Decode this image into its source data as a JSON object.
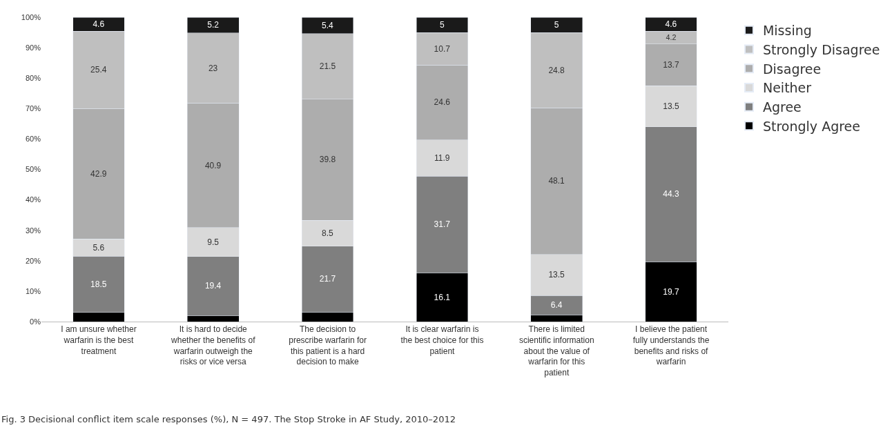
{
  "chart_data": {
    "type": "bar",
    "stacked": true,
    "legend": "right",
    "categories": [
      "I am unsure whether warfarin is the best treatment",
      "It is hard to decide whether the benefits of warfarin outweigh the risks or vice versa",
      "The decision to prescribe warfarin for this patient is a hard decision to make",
      "It is clear warfarin is the best choice for this patient",
      "There is limited scientific information about the value of warfarin for this patient",
      "I believe the patient fully understands the benefits and risks of warfarin"
    ],
    "ylim": [
      0,
      100
    ],
    "yticks": [
      {
        "value": 0,
        "label": "0%"
      },
      {
        "value": 10,
        "label": "10%"
      },
      {
        "value": 20,
        "label": "20%"
      },
      {
        "value": 30,
        "label": "30%"
      },
      {
        "value": 40,
        "label": "40%"
      },
      {
        "value": 50,
        "label": "50%"
      },
      {
        "value": 60,
        "label": "60%"
      },
      {
        "value": 70,
        "label": "70%"
      },
      {
        "value": 80,
        "label": "80%"
      },
      {
        "value": 90,
        "label": "90%"
      },
      {
        "value": 100,
        "label": "100%"
      }
    ],
    "series": [
      {
        "name": "Strongly Agree",
        "color": "#000000",
        "values": [
          3.0,
          2.0,
          3.1,
          16.1,
          2.2,
          19.7
        ],
        "value_labels": [
          null,
          null,
          null,
          "16.1",
          null,
          "19.7"
        ]
      },
      {
        "name": "Agree",
        "color": "#7f7f7f",
        "values": [
          18.5,
          19.4,
          21.7,
          31.7,
          6.4,
          44.3
        ],
        "value_labels": [
          "18.5",
          "19.4",
          "21.7",
          "31.7",
          "6.4",
          "44.3"
        ]
      },
      {
        "name": "Neither",
        "color": "#d9d9d9",
        "values": [
          5.6,
          9.5,
          8.5,
          11.9,
          13.5,
          13.5
        ],
        "value_labels": [
          "5.6",
          "9.5",
          "8.5",
          "11.9",
          "13.5",
          "13.5"
        ]
      },
      {
        "name": "Disagree",
        "color": "#adadad",
        "values": [
          42.9,
          40.9,
          39.8,
          24.6,
          48.1,
          13.7
        ],
        "value_labels": [
          "42.9",
          "40.9",
          "39.8",
          "24.6",
          "48.1",
          "13.7"
        ]
      },
      {
        "name": "Strongly Disagree",
        "color": "#bfbfbf",
        "values": [
          25.4,
          23,
          21.5,
          10.7,
          24.8,
          4.2
        ],
        "value_labels": [
          "25.4",
          "23",
          "21.5",
          "10.7",
          "24.8",
          "4.2"
        ]
      },
      {
        "name": "Missing",
        "color": "#1a1a1a",
        "values": [
          4.6,
          5.2,
          5.4,
          5,
          5,
          4.6
        ],
        "value_labels": [
          "4.6",
          "5.2",
          "5.4",
          "5",
          "5",
          "4.6"
        ]
      }
    ],
    "annotations": [
      "Fig. 3 Decisional conflict item scale responses (%), N = 497. The Stop Stroke in AF Study, 2010–2012"
    ]
  }
}
